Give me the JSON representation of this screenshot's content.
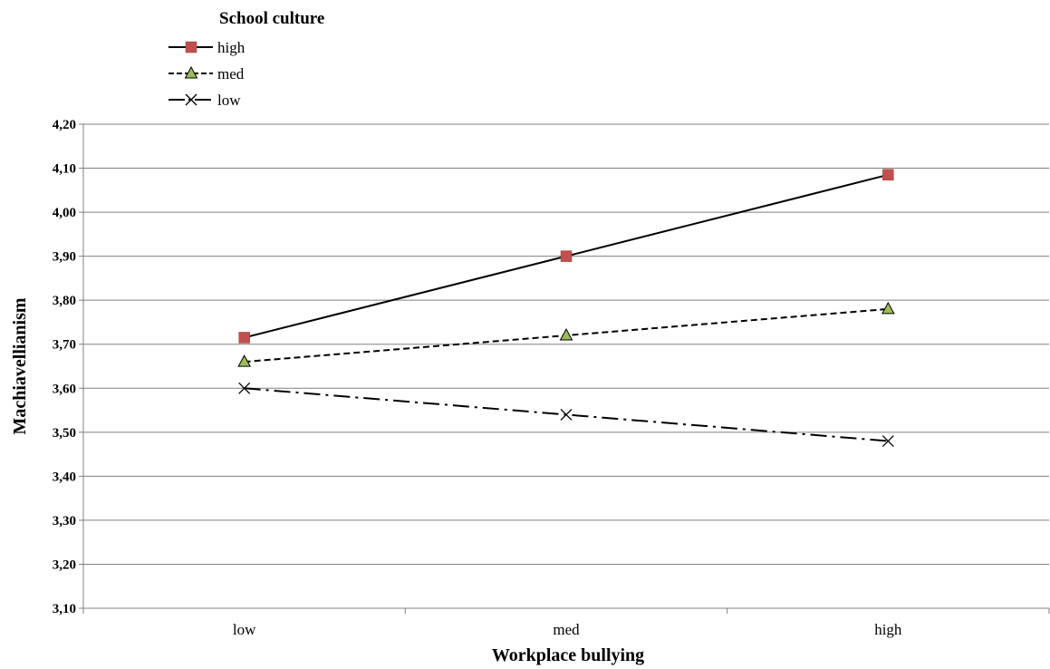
{
  "chart_data": {
    "type": "line",
    "legend_title": "School culture",
    "legend_position": "top-left",
    "xlabel": "Workplace bullying",
    "ylabel": "Machiavellianism",
    "categories": [
      "low",
      "med",
      "high"
    ],
    "ylim": [
      3.1,
      4.2
    ],
    "ytick_step": 0.1,
    "ytick_labels": [
      "3,10",
      "3,20",
      "3,30",
      "3,40",
      "3,50",
      "3,60",
      "3,70",
      "3,80",
      "3,90",
      "4,00",
      "4,10",
      "4,20"
    ],
    "grid": true,
    "series": [
      {
        "name": "high",
        "values": [
          3.715,
          3.9,
          4.085
        ],
        "color": "#c0504d",
        "marker": "square",
        "line": "solid"
      },
      {
        "name": "med",
        "values": [
          3.66,
          3.72,
          3.78
        ],
        "color": "#9bbb59",
        "marker": "triangle",
        "line": "dashed"
      },
      {
        "name": "low",
        "values": [
          3.6,
          3.54,
          3.48
        ],
        "color": "#000000",
        "marker": "x",
        "line": "dashdot"
      }
    ]
  }
}
